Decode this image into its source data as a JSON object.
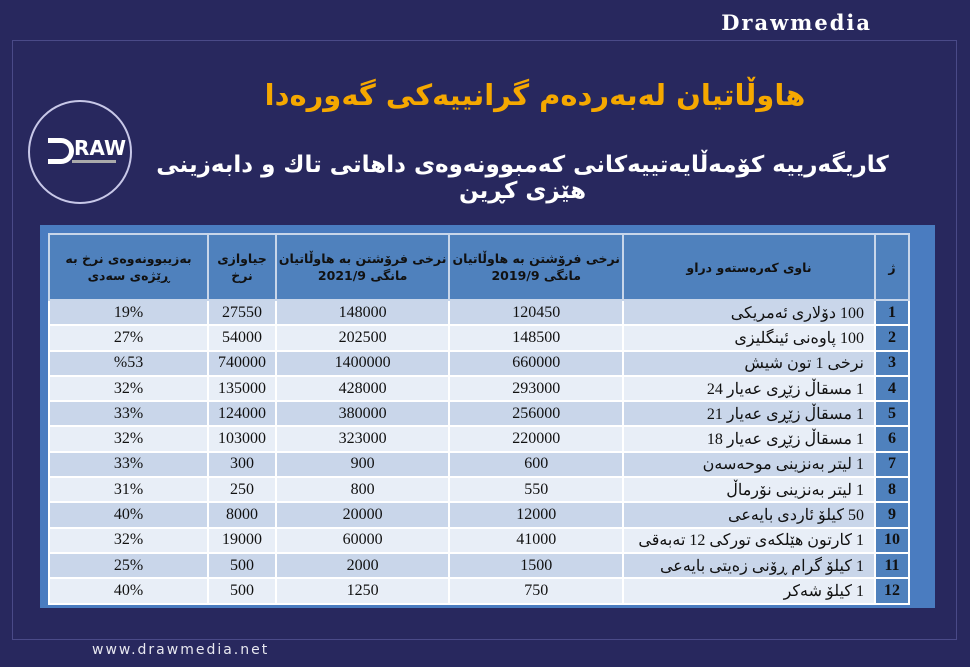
{
  "brand": "Drawmedia",
  "footer": "www.drawmedia.net",
  "logo_text": "DRAW",
  "title": "هاوڵاتیان لەبەردەم گرانییەکی گەورەدا",
  "subtitle": "کاریگەرییە کۆمەڵایەتییەکانی کەمبوونەوەی داهاتی تاك و دابەزینی هێزی کڕین",
  "colors": {
    "background": "#28285e",
    "title": "#f5a800",
    "table_header": "#4f81bd",
    "row_odd": "#c9d6ea",
    "row_even": "#e8eef7"
  },
  "table": {
    "headers": [
      "ژ",
      "ناوی کەرەستەو دراو",
      "نرخی فرۆشتن بە هاوڵاتیان مانگی 2019/9",
      "نرخی فرۆشتن بە هاوڵاتیان مانگی 2021/9",
      "جیاوازی نرخ",
      "بەزیبوونەوەی نرخ بە ڕێژەی سەدی"
    ],
    "rows": [
      [
        "1",
        "100 دۆلاری ئەمریکی",
        "120450",
        "148000",
        "27550",
        "19%"
      ],
      [
        "2",
        "100 پاوەنی ئینگلیزی",
        "148500",
        "202500",
        "54000",
        "27%"
      ],
      [
        "3",
        "نرخی 1 تون شیش",
        "660000",
        "1400000",
        "740000",
        "%53"
      ],
      [
        "4",
        "1 مسقاڵ زێڕی عەیار 24",
        "293000",
        "428000",
        "135000",
        "32%"
      ],
      [
        "5",
        "1 مسقاڵ زێڕی عەیار 21",
        "256000",
        "380000",
        "124000",
        "33%"
      ],
      [
        "6",
        "1 مسقاڵ زێڕی عەیار 18",
        "220000",
        "323000",
        "103000",
        "32%"
      ],
      [
        "7",
        "1 لیتر بەنزینی موحەسەن",
        "600",
        "900",
        "300",
        "33%"
      ],
      [
        "8",
        "1 لیتر بەنزینی نۆرماڵ",
        "550",
        "800",
        "250",
        "31%"
      ],
      [
        "9",
        "50 کیلۆ ئاردی بایەعی",
        "12000",
        "20000",
        "8000",
        "40%"
      ],
      [
        "10",
        "1 کارتون هێلکەی تورکی 12 تەبەقی",
        "41000",
        "60000",
        "19000",
        "32%"
      ],
      [
        "11",
        "1 کیلۆ گرام ڕۆنی زەیتی بایەعی",
        "1500",
        "2000",
        "500",
        "25%"
      ],
      [
        "12",
        "1 کیلۆ شەکر",
        "750",
        "1250",
        "500",
        "40%"
      ]
    ]
  }
}
